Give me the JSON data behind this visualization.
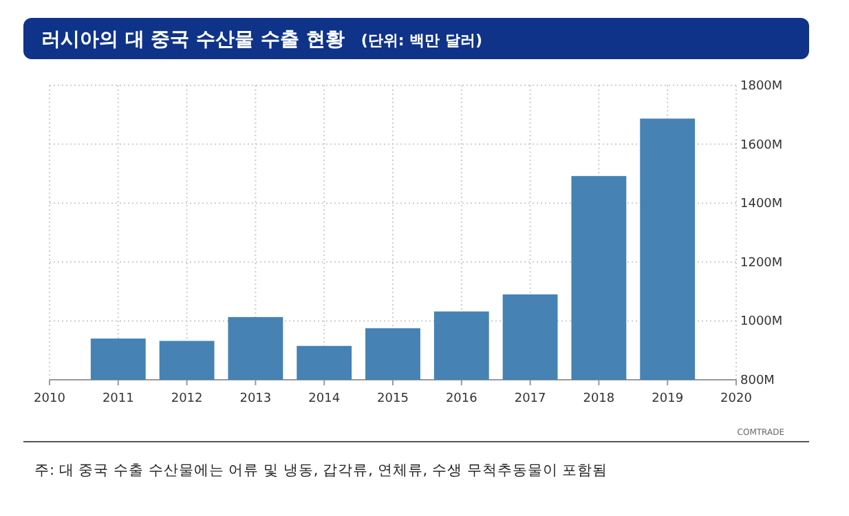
{
  "chart_data": {
    "type": "bar",
    "title": "러시아의 대 중국 수산물 수출 현황",
    "subtitle": "(단위: 백만 달러)",
    "x": [
      2011,
      2012,
      2013,
      2014,
      2015,
      2016,
      2017,
      2018,
      2019
    ],
    "values": [
      940,
      932,
      1013,
      915,
      975,
      1032,
      1090,
      1492,
      1687
    ],
    "color": "#4682b4",
    "xlim": [
      2010,
      2020
    ],
    "xticks": [
      2010,
      2011,
      2012,
      2013,
      2014,
      2015,
      2016,
      2017,
      2018,
      2019,
      2020
    ],
    "ylim": [
      800,
      1800
    ],
    "yticks": [
      {
        "value": 800,
        "label": "800M"
      },
      {
        "value": 1000,
        "label": "1000M"
      },
      {
        "value": 1200,
        "label": "1200M"
      },
      {
        "value": 1400,
        "label": "1400M"
      },
      {
        "value": 1600,
        "label": "1600M"
      },
      {
        "value": 1800,
        "label": "1800M"
      }
    ],
    "grid": true,
    "annotations": [
      "COMTRADE",
      "주: 대 중국 수출 수산물에는 어류 및 냉동, 갑각류, 연체류, 수생 무척추동물이 포함됨"
    ]
  }
}
